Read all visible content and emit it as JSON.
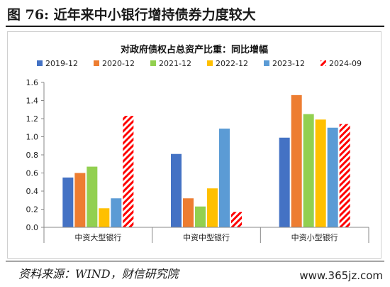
{
  "figure": {
    "title": "图 76:  近年来中小银行增持债券力度较大",
    "source": "资料来源：WIND，财信研究院",
    "watermark": "www.365jz.com"
  },
  "chart_data": {
    "type": "bar",
    "title": "对政府债权占总资产比重：同比增幅",
    "xlabel": "",
    "ylabel": "",
    "categories": [
      "中资大型银行",
      "中资中型银行",
      "中资小型银行"
    ],
    "ylim": [
      0,
      1.6
    ],
    "yticks": [
      0.0,
      0.2,
      0.4,
      0.6,
      0.8,
      1.0,
      1.2,
      1.4,
      1.6
    ],
    "legend_position": "top",
    "grid": false,
    "series": [
      {
        "name": "2019-12",
        "color": "#4472C4",
        "pattern": "solid",
        "values": [
          0.55,
          0.81,
          0.99
        ]
      },
      {
        "name": "2020-12",
        "color": "#ED7D31",
        "pattern": "solid",
        "values": [
          0.6,
          0.32,
          1.46
        ]
      },
      {
        "name": "2021-12",
        "color": "#92D050",
        "pattern": "solid",
        "values": [
          0.67,
          0.23,
          1.25
        ]
      },
      {
        "name": "2022-12",
        "color": "#FFC000",
        "pattern": "solid",
        "values": [
          0.21,
          0.43,
          1.19
        ]
      },
      {
        "name": "2023-12",
        "color": "#5B9BD5",
        "pattern": "solid",
        "values": [
          0.32,
          1.09,
          1.1
        ]
      },
      {
        "name": "2024-09",
        "color": "#FF0000",
        "pattern": "hatched",
        "values": [
          1.23,
          0.17,
          1.14
        ]
      }
    ]
  }
}
